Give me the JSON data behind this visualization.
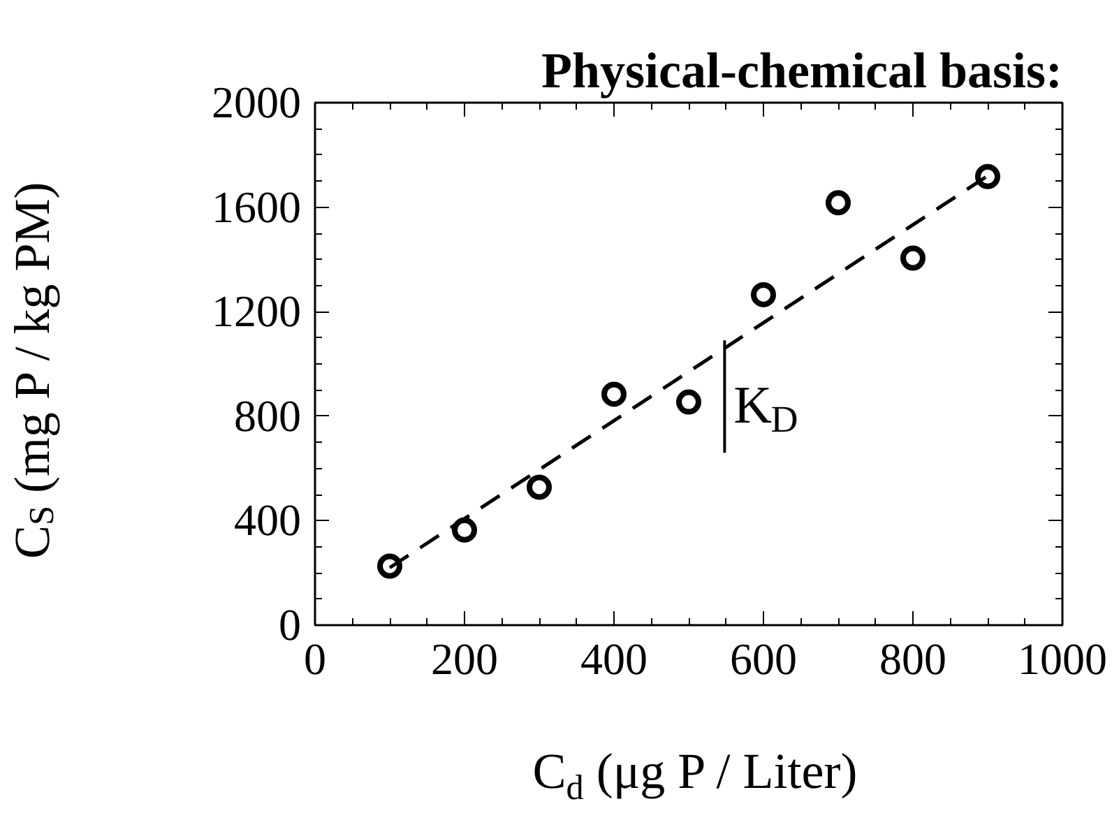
{
  "chart_data": {
    "type": "scatter",
    "title": "Physical-chemical basis:",
    "xlabel": "C$_{d}$ (μg P / Liter)",
    "ylabel": "C$_{S}$ (mg P / kg PM)",
    "x": [
      100,
      200,
      300,
      400,
      500,
      600,
      700,
      800,
      900
    ],
    "series": [
      {
        "color": "#000000",
        "marker": "circle",
        "values": [
          226,
          364,
          528,
          884,
          854,
          1265,
          1617,
          1405,
          1717
        ]
      },
      {
        "type": "line",
        "color": "#000000",
        "line_style": "dashed",
        "marker": "none",
        "x": [
          100,
          900
        ],
        "values": [
          220,
          1720
        ]
      }
    ],
    "xlim": [
      0,
      1000
    ],
    "ylim": [
      0,
      2000
    ],
    "xticks": [
      0,
      200,
      400,
      600,
      800,
      1000
    ],
    "yticks": [
      0,
      400,
      800,
      1200,
      1600,
      2000
    ],
    "annotations": [
      "K$_{D}$"
    ],
    "grid": false
  }
}
